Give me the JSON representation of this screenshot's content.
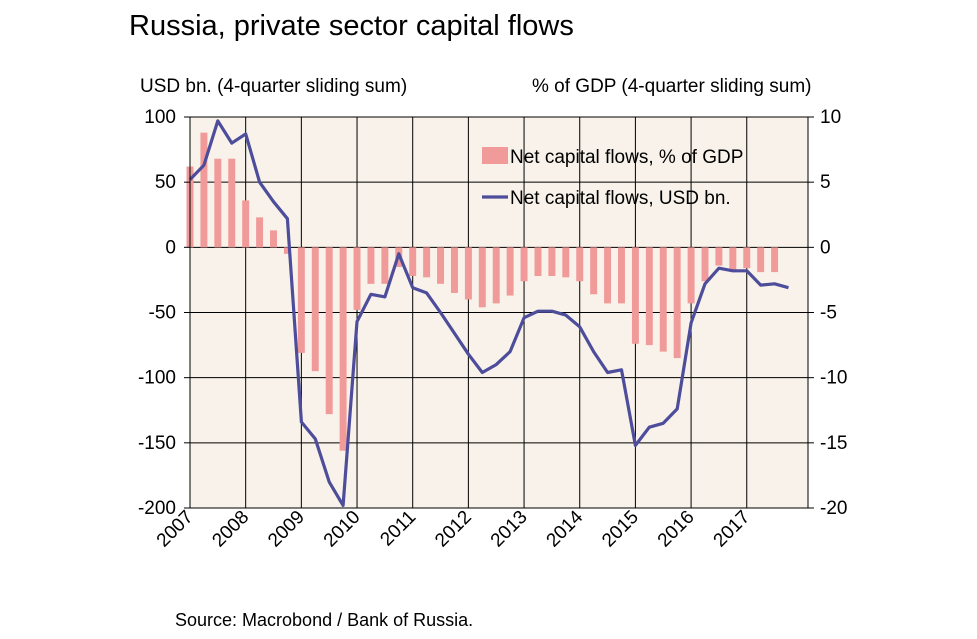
{
  "title": "Russia, private sector capital flows",
  "left_axis_title": "USD bn. (4-quarter sliding sum)",
  "right_axis_title": "% of GDP (4-quarter sliding sum)",
  "source": "Source: Macrobond / Bank of Russia.",
  "colors": {
    "bars": "#f09a9a",
    "line": "#4d4d9b",
    "plot_bg": "#f8f2ea"
  },
  "chart_data": {
    "type": "bar+line",
    "grid": true,
    "legend_position": "top-right",
    "x_tick_labels": [
      "2007",
      "2008",
      "2009",
      "2010",
      "2011",
      "2012",
      "2013",
      "2014",
      "2015",
      "2016",
      "2017"
    ],
    "left_axis": {
      "range": [
        -200,
        100
      ],
      "ticks": [
        "100",
        "50",
        "0",
        "-50",
        "-100",
        "-150",
        "-200"
      ]
    },
    "right_axis": {
      "range": [
        -20,
        10
      ],
      "ticks": [
        "10",
        "5",
        "0",
        "-5",
        "-10",
        "-15",
        "-20"
      ]
    },
    "series": [
      {
        "name": "Net capital flows, % of GDP",
        "type": "bar",
        "axis": "right",
        "x": [
          2007.0,
          2007.25,
          2007.5,
          2007.75,
          2008.0,
          2008.25,
          2008.5,
          2008.75,
          2009.0,
          2009.25,
          2009.5,
          2009.75,
          2010.0,
          2010.25,
          2010.5,
          2010.75,
          2011.0,
          2011.25,
          2011.5,
          2011.75,
          2012.0,
          2012.25,
          2012.5,
          2012.75,
          2013.0,
          2013.25,
          2013.5,
          2013.75,
          2014.0,
          2014.25,
          2014.5,
          2014.75,
          2015.0,
          2015.25,
          2015.5,
          2015.75,
          2016.0,
          2016.25,
          2016.5,
          2016.75,
          2017.0,
          2017.25,
          2017.5
        ],
        "values": [
          6.2,
          8.8,
          6.8,
          6.8,
          3.6,
          2.3,
          1.3,
          -0.5,
          -8.1,
          -9.5,
          -12.8,
          -15.6,
          -4.8,
          -2.8,
          -2.8,
          -1.5,
          -2.2,
          -2.3,
          -2.8,
          -3.5,
          -4.0,
          -4.6,
          -4.3,
          -3.7,
          -2.6,
          -2.2,
          -2.2,
          -2.3,
          -2.6,
          -3.6,
          -4.3,
          -4.3,
          -7.4,
          -7.5,
          -8.0,
          -8.5,
          -4.3,
          -2.6,
          -1.4,
          -1.7,
          -1.6,
          -1.9,
          -1.9
        ]
      },
      {
        "name": "Net capital flows, USD bn.",
        "type": "line",
        "axis": "left",
        "x": [
          2007.0,
          2007.25,
          2007.5,
          2007.75,
          2008.0,
          2008.25,
          2008.5,
          2008.75,
          2009.0,
          2009.25,
          2009.5,
          2009.75,
          2010.0,
          2010.25,
          2010.5,
          2010.75,
          2011.0,
          2011.25,
          2011.5,
          2011.75,
          2012.0,
          2012.25,
          2012.5,
          2012.75,
          2013.0,
          2013.25,
          2013.5,
          2013.75,
          2014.0,
          2014.25,
          2014.5,
          2014.75,
          2015.0,
          2015.25,
          2015.5,
          2015.75,
          2016.0,
          2016.25,
          2016.5,
          2016.75,
          2017.0,
          2017.25,
          2017.5,
          2017.75
        ],
        "values": [
          52,
          63,
          97,
          80,
          87,
          50,
          35,
          22,
          -134,
          -147,
          -180,
          -198,
          -57,
          -36,
          -38,
          -5,
          -31,
          -35,
          -50,
          -66,
          -82,
          -96,
          -90,
          -80,
          -54,
          -49,
          -49,
          -52,
          -61,
          -80,
          -96,
          -94,
          -152,
          -138,
          -135,
          -124,
          -58,
          -28,
          -16,
          -18,
          -18,
          -29,
          -28,
          -31
        ]
      }
    ]
  }
}
